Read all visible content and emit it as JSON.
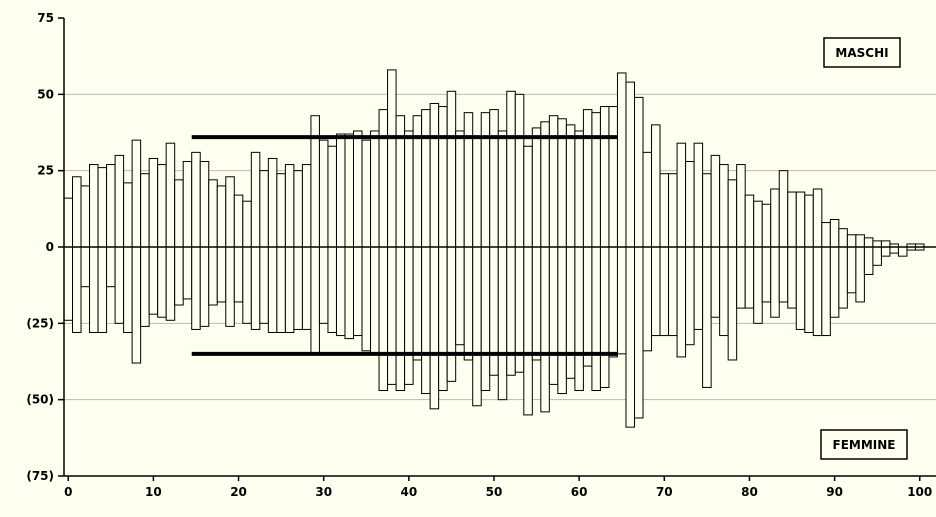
{
  "chart_data": {
    "type": "bar",
    "ylim": [
      -75,
      75
    ],
    "xlim": [
      0,
      100
    ],
    "x_ticks": [
      0,
      10,
      20,
      30,
      40,
      50,
      60,
      70,
      80,
      90,
      100
    ],
    "y_ticks": [
      75,
      50,
      25,
      0,
      -25,
      -50,
      -75
    ],
    "y_tick_labels": [
      "75",
      "50",
      "25",
      "0",
      "(25)",
      "(50)",
      "(75)"
    ],
    "grid": "horizontal",
    "legend_labels": {
      "top": "MASCHI",
      "bottom": "FEMMINE"
    },
    "ages": [
      0,
      1,
      2,
      3,
      4,
      5,
      6,
      7,
      8,
      9,
      10,
      11,
      12,
      13,
      14,
      15,
      16,
      17,
      18,
      19,
      20,
      21,
      22,
      23,
      24,
      25,
      26,
      27,
      28,
      29,
      30,
      31,
      32,
      33,
      34,
      35,
      36,
      37,
      38,
      39,
      40,
      41,
      42,
      43,
      44,
      45,
      46,
      47,
      48,
      49,
      50,
      51,
      52,
      53,
      54,
      55,
      56,
      57,
      58,
      59,
      60,
      61,
      62,
      63,
      64,
      65,
      66,
      67,
      68,
      69,
      70,
      71,
      72,
      73,
      74,
      75,
      76,
      77,
      78,
      79,
      80,
      81,
      82,
      83,
      84,
      85,
      86,
      87,
      88,
      89,
      90,
      91,
      92,
      93,
      94,
      95,
      96,
      97,
      98,
      99,
      100
    ],
    "series": [
      {
        "name": "MASCHI",
        "values": [
          16,
          23,
          20,
          27,
          26,
          27,
          30,
          21,
          35,
          24,
          29,
          27,
          34,
          22,
          28,
          31,
          28,
          22,
          20,
          23,
          17,
          15,
          31,
          25,
          29,
          24,
          27,
          25,
          27,
          43,
          35,
          33,
          37,
          37,
          38,
          35,
          38,
          45,
          58,
          43,
          38,
          43,
          45,
          47,
          46,
          51,
          38,
          44,
          36,
          44,
          45,
          38,
          51,
          50,
          33,
          39,
          41,
          43,
          42,
          40,
          38,
          45,
          44,
          46,
          46,
          57,
          54,
          49,
          31,
          40,
          24,
          24,
          34,
          28,
          34,
          24,
          30,
          27,
          22,
          27,
          17,
          15,
          14,
          19,
          25,
          18,
          18,
          17,
          19,
          8,
          9,
          6,
          4,
          4,
          3,
          2,
          2,
          1,
          0,
          1,
          1
        ]
      },
      {
        "name": "FEMMINE",
        "values": [
          -24,
          -28,
          -13,
          -28,
          -28,
          -13,
          -25,
          -28,
          -38,
          -26,
          -22,
          -23,
          -24,
          -19,
          -17,
          -27,
          -26,
          -19,
          -18,
          -26,
          -18,
          -25,
          -27,
          -25,
          -28,
          -28,
          -28,
          -27,
          -27,
          -35,
          -25,
          -28,
          -29,
          -30,
          -29,
          -34,
          -35,
          -47,
          -45,
          -47,
          -45,
          -37,
          -48,
          -53,
          -47,
          -44,
          -32,
          -37,
          -52,
          -47,
          -42,
          -50,
          -42,
          -41,
          -55,
          -37,
          -54,
          -45,
          -48,
          -43,
          -47,
          -39,
          -47,
          -46,
          -36,
          -35,
          -59,
          -56,
          -34,
          -29,
          -29,
          -29,
          -36,
          -32,
          -27,
          -46,
          -23,
          -29,
          -37,
          -20,
          -20,
          -25,
          -18,
          -23,
          -18,
          -20,
          -27,
          -28,
          -29,
          -29,
          -23,
          -20,
          -15,
          -18,
          -9,
          -6,
          -3,
          -2,
          -3,
          -1,
          -1
        ]
      }
    ],
    "reference_lines": [
      {
        "from": 15,
        "to": 64,
        "value": 36
      },
      {
        "from": 15,
        "to": 64,
        "value": -35
      }
    ]
  }
}
